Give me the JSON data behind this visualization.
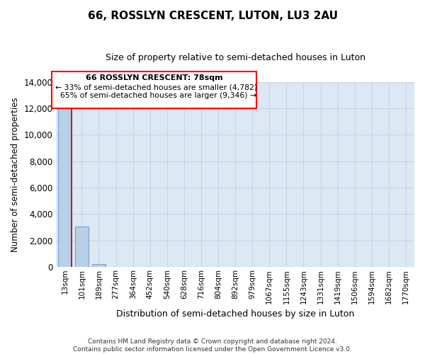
{
  "title": "66, ROSSLYN CRESCENT, LUTON, LU3 2AU",
  "subtitle": "Size of property relative to semi-detached houses in Luton",
  "xlabel": "Distribution of semi-detached houses by size in Luton",
  "ylabel": "Number of semi-detached properties",
  "bar_categories": [
    "13sqm",
    "101sqm",
    "189sqm",
    "277sqm",
    "364sqm",
    "452sqm",
    "540sqm",
    "628sqm",
    "716sqm",
    "804sqm",
    "892sqm",
    "979sqm",
    "1067sqm",
    "1155sqm",
    "1243sqm",
    "1331sqm",
    "1419sqm",
    "1506sqm",
    "1594sqm",
    "1682sqm",
    "1770sqm"
  ],
  "bar_values": [
    13400,
    3050,
    220,
    5,
    2,
    1,
    1,
    0,
    0,
    0,
    0,
    0,
    0,
    0,
    0,
    0,
    0,
    0,
    0,
    0,
    0
  ],
  "bar_color": "#b8cfe8",
  "bar_edge_color": "#7aa0c8",
  "ylim": [
    0,
    14000
  ],
  "yticks": [
    0,
    2000,
    4000,
    6000,
    8000,
    10000,
    12000,
    14000
  ],
  "property_label": "66 ROSSLYN CRESCENT: 78sqm",
  "smaller_pct": "33%",
  "smaller_count": "4,782",
  "larger_pct": "65%",
  "larger_count": "9,346",
  "grid_color": "#c8d4e8",
  "bg_color": "#dce8f4",
  "footer_line1": "Contains HM Land Registry data © Crown copyright and database right 2024.",
  "footer_line2": "Contains public sector information licensed under the Open Government Licence v3.0."
}
